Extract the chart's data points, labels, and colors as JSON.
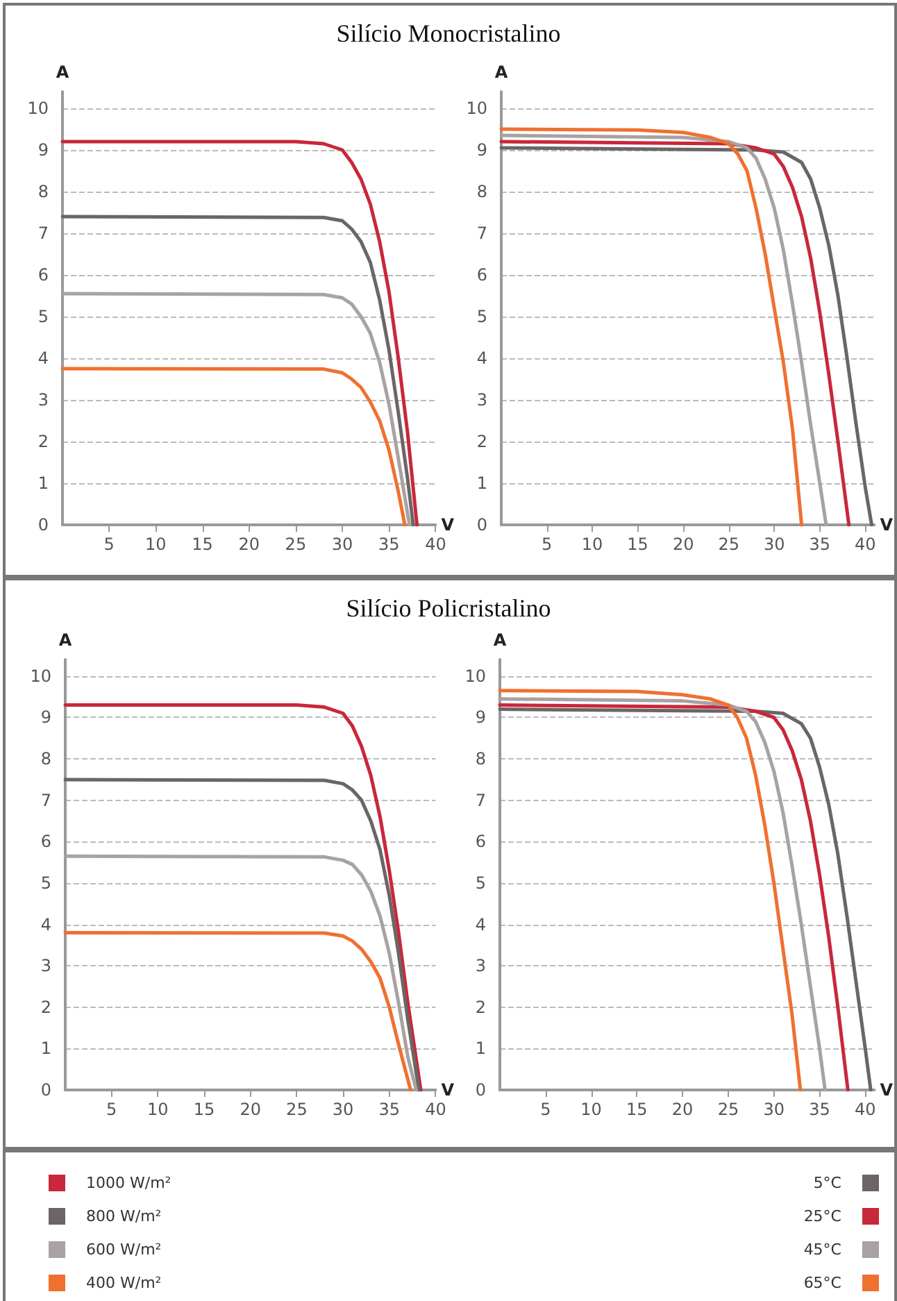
{
  "chart_data": [
    {
      "type": "line",
      "title": "Silício Monocristalino",
      "xlabel": "V",
      "ylabel": "A",
      "xlim": [
        0,
        40
      ],
      "xticks": [
        5,
        10,
        15,
        20,
        25,
        30,
        35,
        40
      ],
      "ylim": [
        0,
        10.4
      ],
      "yticks": [
        0,
        1,
        2,
        3,
        4,
        5,
        6,
        7,
        8,
        9,
        10
      ],
      "grid": "y",
      "line_style": "solid",
      "series": [
        {
          "color": "#c8283a",
          "x": [
            0,
            25,
            28,
            30,
            31,
            32,
            33,
            34,
            35,
            36,
            37,
            38
          ],
          "values": [
            9.2,
            9.2,
            9.15,
            9.0,
            8.7,
            8.3,
            7.7,
            6.8,
            5.6,
            4.0,
            2.2,
            0
          ]
        },
        {
          "color": "#6b6566",
          "x": [
            0,
            28,
            30,
            31,
            32,
            33,
            34,
            35,
            36,
            37,
            37.6
          ],
          "values": [
            7.4,
            7.38,
            7.3,
            7.1,
            6.8,
            6.3,
            5.4,
            4.2,
            2.7,
            1.1,
            0
          ]
        },
        {
          "color": "#a8a2a2",
          "x": [
            0,
            28,
            30,
            31,
            32,
            33,
            34,
            35,
            36,
            37.2
          ],
          "values": [
            5.55,
            5.53,
            5.45,
            5.3,
            5.0,
            4.6,
            3.9,
            2.9,
            1.6,
            0
          ]
        },
        {
          "color": "#f07030",
          "x": [
            0,
            28,
            30,
            31,
            32,
            33,
            34,
            35,
            36,
            36.7
          ],
          "values": [
            3.75,
            3.74,
            3.65,
            3.5,
            3.3,
            2.95,
            2.5,
            1.8,
            0.8,
            0
          ]
        }
      ]
    },
    {
      "type": "line",
      "xlabel": "V",
      "ylabel": "A",
      "xlim": [
        0,
        41
      ],
      "xticks": [
        5,
        10,
        15,
        20,
        25,
        30,
        35,
        40
      ],
      "ylim": [
        0,
        10.4
      ],
      "yticks": [
        0,
        1,
        2,
        3,
        4,
        5,
        6,
        7,
        8,
        9,
        10
      ],
      "grid": "y",
      "line_style": "solid",
      "series": [
        {
          "color": "#6b6566",
          "x": [
            0,
            28,
            31,
            33,
            34,
            35,
            36,
            37,
            38,
            39,
            40,
            40.7
          ],
          "values": [
            9.05,
            9.0,
            8.95,
            8.7,
            8.3,
            7.6,
            6.7,
            5.5,
            4.0,
            2.4,
            0.9,
            0
          ]
        },
        {
          "color": "#c8283a",
          "x": [
            0,
            25,
            28,
            30,
            31,
            32,
            33,
            34,
            35,
            36,
            37,
            38.2
          ],
          "values": [
            9.2,
            9.15,
            9.05,
            8.9,
            8.6,
            8.1,
            7.4,
            6.4,
            5.1,
            3.6,
            2.0,
            0
          ]
        },
        {
          "color": "#a8a2a2",
          "x": [
            0,
            20,
            25,
            27,
            28,
            29,
            30,
            31,
            32,
            33,
            34,
            35,
            35.7
          ],
          "values": [
            9.35,
            9.3,
            9.2,
            9.05,
            8.8,
            8.3,
            7.6,
            6.6,
            5.3,
            3.9,
            2.4,
            1.0,
            0
          ]
        },
        {
          "color": "#f07030",
          "x": [
            0,
            15,
            20,
            23,
            25,
            26,
            27,
            28,
            29,
            30,
            31,
            32,
            33
          ],
          "values": [
            9.5,
            9.48,
            9.42,
            9.3,
            9.15,
            8.9,
            8.5,
            7.6,
            6.5,
            5.2,
            3.9,
            2.3,
            0
          ]
        }
      ]
    },
    {
      "type": "line",
      "title": "Silício Policristalino",
      "xlabel": "V",
      "ylabel": "A",
      "xlim": [
        0,
        40
      ],
      "xticks": [
        5,
        10,
        15,
        20,
        25,
        30,
        35,
        40
      ],
      "ylim": [
        0,
        10.4
      ],
      "yticks": [
        0,
        1,
        2,
        3,
        4,
        5,
        6,
        7,
        8,
        9,
        10
      ],
      "grid": "y",
      "line_style": "solid",
      "legend": "bottom left",
      "series": [
        {
          "name": "1000 W/m²",
          "color": "#c8283a",
          "x": [
            0,
            25,
            28,
            30,
            31,
            32,
            33,
            34,
            35,
            36,
            37,
            38.4
          ],
          "values": [
            9.3,
            9.3,
            9.25,
            9.1,
            8.8,
            8.3,
            7.6,
            6.6,
            5.3,
            3.8,
            2.1,
            0
          ]
        },
        {
          "name": "800 W/m²",
          "color": "#6b6566",
          "x": [
            0,
            28,
            30,
            31,
            32,
            33,
            34,
            35,
            36,
            37,
            38.2
          ],
          "values": [
            7.5,
            7.48,
            7.4,
            7.25,
            7.0,
            6.5,
            5.8,
            4.7,
            3.3,
            1.7,
            0
          ]
        },
        {
          "name": "600 W/m²",
          "color": "#a8a2a2",
          "x": [
            0,
            28,
            30,
            31,
            32,
            33,
            34,
            35,
            36,
            37,
            37.9
          ],
          "values": [
            5.65,
            5.63,
            5.55,
            5.45,
            5.2,
            4.8,
            4.2,
            3.3,
            2.1,
            0.8,
            0
          ]
        },
        {
          "name": "400 W/m²",
          "color": "#f07030",
          "x": [
            0,
            28,
            30,
            31,
            32,
            33,
            34,
            35,
            36,
            37.3
          ],
          "values": [
            3.8,
            3.79,
            3.72,
            3.6,
            3.4,
            3.1,
            2.7,
            2.0,
            1.1,
            0
          ]
        }
      ]
    },
    {
      "type": "line",
      "xlabel": "V",
      "ylabel": "A",
      "xlim": [
        0,
        41
      ],
      "xticks": [
        5,
        10,
        15,
        20,
        25,
        30,
        35,
        40
      ],
      "ylim": [
        0,
        10.4
      ],
      "yticks": [
        0,
        1,
        2,
        3,
        4,
        5,
        6,
        7,
        8,
        9,
        10
      ],
      "grid": "y",
      "line_style": "solid",
      "legend": "bottom right",
      "series": [
        {
          "name": "5°C",
          "color": "#6b6566",
          "x": [
            0,
            28,
            31,
            33,
            34,
            35,
            36,
            37,
            38,
            39,
            40,
            40.6
          ],
          "values": [
            9.2,
            9.15,
            9.1,
            8.85,
            8.5,
            7.8,
            6.9,
            5.7,
            4.2,
            2.6,
            1.0,
            0
          ]
        },
        {
          "name": "25°C",
          "color": "#c8283a",
          "x": [
            0,
            25,
            28,
            30,
            31,
            32,
            33,
            34,
            35,
            36,
            37,
            38.1
          ],
          "values": [
            9.3,
            9.25,
            9.15,
            9.0,
            8.7,
            8.2,
            7.5,
            6.5,
            5.2,
            3.7,
            2.0,
            0
          ]
        },
        {
          "name": "45°C",
          "color": "#a8a2a2",
          "x": [
            0,
            20,
            25,
            27,
            28,
            29,
            30,
            31,
            32,
            33,
            34,
            35,
            35.6
          ],
          "values": [
            9.45,
            9.4,
            9.3,
            9.15,
            8.9,
            8.4,
            7.7,
            6.7,
            5.4,
            4.0,
            2.5,
            1.0,
            0
          ]
        },
        {
          "name": "65°C",
          "color": "#f07030",
          "x": [
            0,
            15,
            20,
            23,
            25,
            26,
            27,
            28,
            29,
            30,
            31,
            32,
            32.9
          ],
          "values": [
            9.65,
            9.63,
            9.55,
            9.45,
            9.3,
            9.0,
            8.5,
            7.6,
            6.4,
            5.0,
            3.4,
            1.8,
            0
          ]
        }
      ]
    }
  ]
}
